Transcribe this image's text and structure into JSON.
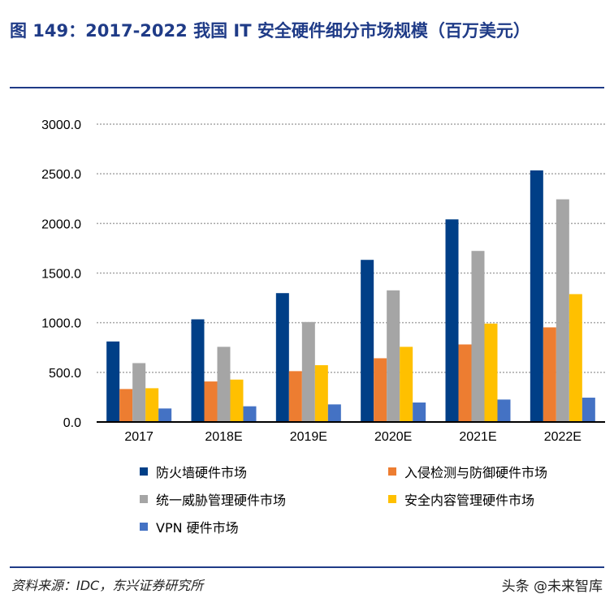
{
  "title": "图 149：2017-2022 我国 IT 安全硬件细分市场规模（百万美元）",
  "source": "资料来源：IDC，东兴证券研究所",
  "watermark": "头条 @未来智库",
  "chart_data": {
    "type": "bar",
    "title": "",
    "xlabel": "",
    "ylabel": "",
    "ylim": [
      0,
      3000
    ],
    "yticks": [
      "0.0",
      "500.0",
      "1000.0",
      "1500.0",
      "2000.0",
      "2500.0",
      "3000.0"
    ],
    "grid": true,
    "legend_position": "bottom",
    "categories": [
      "2017",
      "2018E",
      "2019E",
      "2020E",
      "2021E",
      "2022E"
    ],
    "series": [
      {
        "name": "防火墙硬件市场",
        "color": "#003f87",
        "values": [
          811,
          1034,
          1298,
          1633,
          2041,
          2534
        ]
      },
      {
        "name": "入侵检测与防御硬件市场",
        "color": "#ed7d31",
        "values": [
          332,
          408,
          512,
          642,
          781,
          953
        ]
      },
      {
        "name": "统一威胁管理硬件市场",
        "color": "#a5a5a5",
        "values": [
          593,
          757,
          1007,
          1326,
          1723,
          2243
        ]
      },
      {
        "name": "安全内容管理硬件市场",
        "color": "#ffc000",
        "values": [
          340,
          427,
          572,
          757,
          991,
          1288
        ]
      },
      {
        "name": "VPN 硬件市场",
        "color": "#4472c4",
        "values": [
          136,
          158,
          177,
          196,
          226,
          245
        ]
      }
    ]
  }
}
